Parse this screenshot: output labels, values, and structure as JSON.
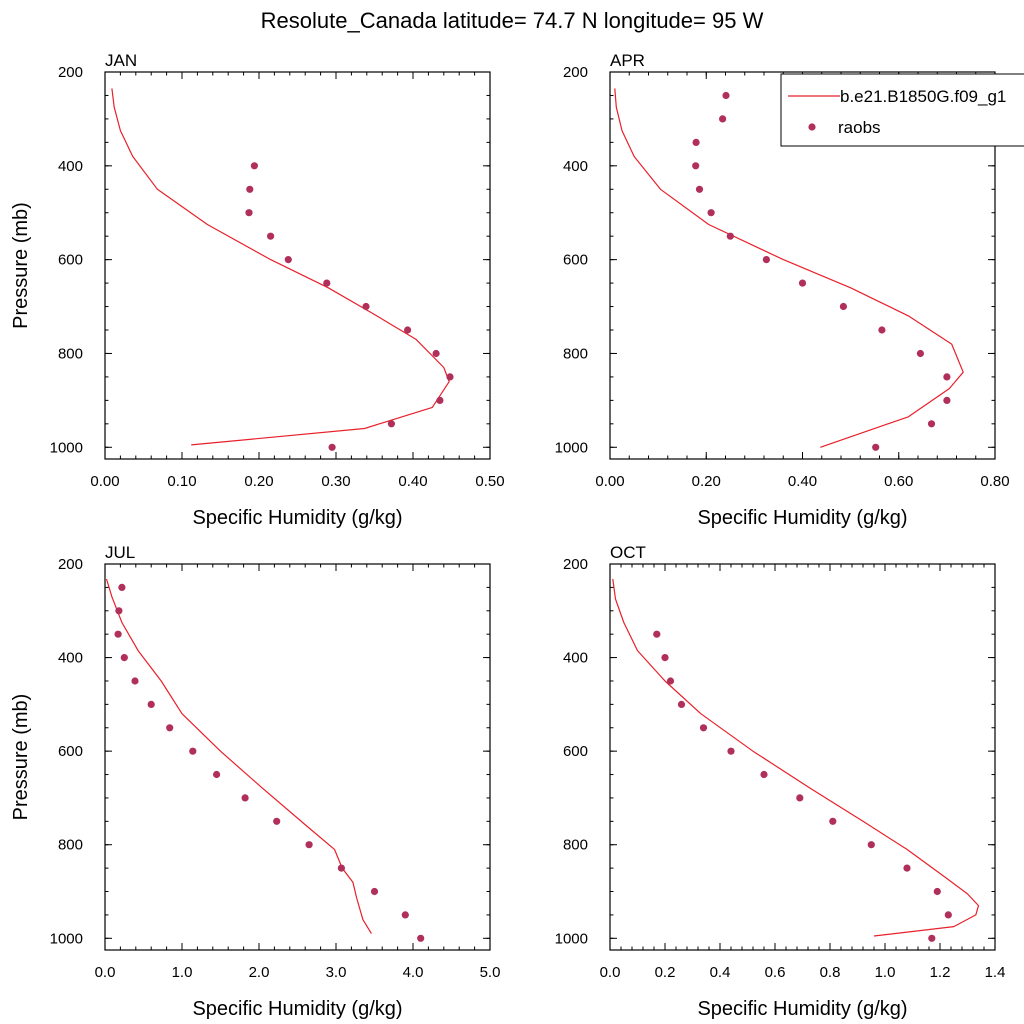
{
  "title": "Resolute_Canada  latitude= 74.7 N longitude= 95 W",
  "legend": {
    "placement": "top-right",
    "model_label": "b.e21.B1850G.f09_g1",
    "obs_label": "raobs"
  },
  "colors": {
    "model_line": "#e8202a",
    "obs_marker": "#b0305a",
    "axes": "#000000"
  },
  "chart_data": [
    {
      "type": "line",
      "panel": "JAN",
      "xlabel": "Specific Humidity (g/kg)",
      "ylabel": "Pressure (mb)",
      "xlim": [
        0,
        0.5
      ],
      "ylim": [
        200,
        1025
      ],
      "y_inverted": true,
      "xticks": [
        "0.00",
        "0.10",
        "0.20",
        "0.30",
        "0.40",
        "0.50"
      ],
      "xtick_values": [
        0,
        0.1,
        0.2,
        0.3,
        0.4,
        0.5
      ],
      "yticks": [
        "200",
        "400",
        "600",
        "800",
        "1000"
      ],
      "ytick_values": [
        200,
        400,
        600,
        800,
        1000
      ],
      "series": [
        {
          "name": "b.e21.B1850G.f09_g1",
          "style": "line",
          "x": [
            0.009,
            0.012,
            0.02,
            0.036,
            0.068,
            0.133,
            0.215,
            0.29,
            0.348,
            0.404,
            0.44,
            0.447,
            0.425,
            0.337,
            0.112
          ],
          "y": [
            235,
            275,
            325,
            380,
            450,
            525,
            600,
            660,
            715,
            770,
            830,
            860,
            915,
            960,
            995
          ]
        },
        {
          "name": "raobs",
          "style": "markers",
          "x": [
            0.194,
            0.188,
            0.187,
            0.215,
            0.238,
            0.288,
            0.339,
            0.393,
            0.43,
            0.448,
            0.435,
            0.372,
            0.295
          ],
          "y": [
            400,
            450,
            500,
            550,
            600,
            650,
            700,
            750,
            800,
            850,
            900,
            950,
            1000
          ]
        }
      ]
    },
    {
      "type": "line",
      "panel": "APR",
      "xlabel": "Specific Humidity (g/kg)",
      "ylabel": "",
      "xlim": [
        0,
        0.8
      ],
      "ylim": [
        200,
        1025
      ],
      "y_inverted": true,
      "xticks": [
        "0.00",
        "0.20",
        "0.40",
        "0.60",
        "0.80"
      ],
      "xtick_values": [
        0,
        0.2,
        0.4,
        0.6,
        0.8
      ],
      "yticks": [
        "200",
        "400",
        "600",
        "800",
        "1000"
      ],
      "ytick_values": [
        200,
        400,
        600,
        800,
        1000
      ],
      "series": [
        {
          "name": "b.e21.B1850G.f09_g1",
          "style": "line",
          "x": [
            0.01,
            0.013,
            0.025,
            0.05,
            0.105,
            0.205,
            0.36,
            0.5,
            0.62,
            0.71,
            0.734,
            0.705,
            0.62,
            0.437
          ],
          "y": [
            235,
            275,
            325,
            380,
            450,
            525,
            600,
            660,
            720,
            780,
            840,
            875,
            935,
            1000
          ]
        },
        {
          "name": "raobs",
          "style": "markers",
          "x": [
            0.241,
            0.234,
            0.179,
            0.178,
            0.186,
            0.21,
            0.25,
            0.325,
            0.4,
            0.485,
            0.565,
            0.645,
            0.7,
            0.7,
            0.668,
            0.552
          ],
          "y": [
            250,
            300,
            350,
            400,
            450,
            500,
            550,
            600,
            650,
            700,
            750,
            800,
            850,
            900,
            950,
            1000
          ]
        }
      ]
    },
    {
      "type": "line",
      "panel": "JUL",
      "xlabel": "Specific Humidity (g/kg)",
      "ylabel": "Pressure (mb)",
      "xlim": [
        0,
        5
      ],
      "ylim": [
        200,
        1025
      ],
      "y_inverted": true,
      "xticks": [
        "0.0",
        "1.0",
        "2.0",
        "3.0",
        "4.0",
        "5.0"
      ],
      "xtick_values": [
        0,
        1,
        2,
        3,
        4,
        5
      ],
      "yticks": [
        "200",
        "400",
        "600",
        "800",
        "1000"
      ],
      "ytick_values": [
        200,
        400,
        600,
        800,
        1000
      ],
      "series": [
        {
          "name": "b.e21.B1850G.f09_g1",
          "style": "line",
          "x": [
            0.02,
            0.09,
            0.22,
            0.43,
            0.73,
            1.0,
            1.5,
            2.05,
            2.62,
            2.98,
            3.08,
            3.22,
            3.27,
            3.35,
            3.46
          ],
          "y": [
            232,
            270,
            325,
            385,
            450,
            520,
            600,
            680,
            760,
            810,
            850,
            880,
            915,
            960,
            990
          ]
        },
        {
          "name": "raobs",
          "style": "markers",
          "x": [
            0.22,
            0.18,
            0.17,
            0.25,
            0.39,
            0.6,
            0.84,
            1.14,
            1.45,
            1.82,
            2.23,
            2.65,
            3.07,
            3.5,
            3.9,
            4.1
          ],
          "y": [
            250,
            300,
            350,
            400,
            450,
            500,
            550,
            600,
            650,
            700,
            750,
            800,
            850,
            900,
            950,
            1000
          ]
        }
      ]
    },
    {
      "type": "line",
      "panel": "OCT",
      "xlabel": "Specific Humidity (g/kg)",
      "ylabel": "",
      "xlim": [
        0,
        1.4
      ],
      "ylim": [
        200,
        1025
      ],
      "y_inverted": true,
      "xticks": [
        "0.0",
        "0.2",
        "0.4",
        "0.6",
        "0.8",
        "1.0",
        "1.2",
        "1.4"
      ],
      "xtick_values": [
        0,
        0.2,
        0.4,
        0.6,
        0.8,
        1.0,
        1.2,
        1.4
      ],
      "yticks": [
        "200",
        "400",
        "600",
        "800",
        "1000"
      ],
      "ytick_values": [
        200,
        400,
        600,
        800,
        1000
      ],
      "series": [
        {
          "name": "b.e21.B1850G.f09_g1",
          "style": "line",
          "x": [
            0.01,
            0.02,
            0.05,
            0.1,
            0.2,
            0.33,
            0.52,
            0.73,
            0.92,
            1.08,
            1.22,
            1.3,
            1.34,
            1.33,
            1.25,
            0.96
          ],
          "y": [
            232,
            275,
            325,
            385,
            450,
            520,
            600,
            680,
            750,
            810,
            870,
            905,
            930,
            950,
            975,
            995
          ]
        },
        {
          "name": "raobs",
          "style": "markers",
          "x": [
            0.17,
            0.2,
            0.22,
            0.26,
            0.34,
            0.44,
            0.56,
            0.69,
            0.81,
            0.95,
            1.08,
            1.19,
            1.23,
            1.17
          ],
          "y": [
            350,
            400,
            450,
            500,
            550,
            600,
            650,
            700,
            750,
            800,
            850,
            900,
            950,
            1000
          ]
        }
      ]
    }
  ]
}
